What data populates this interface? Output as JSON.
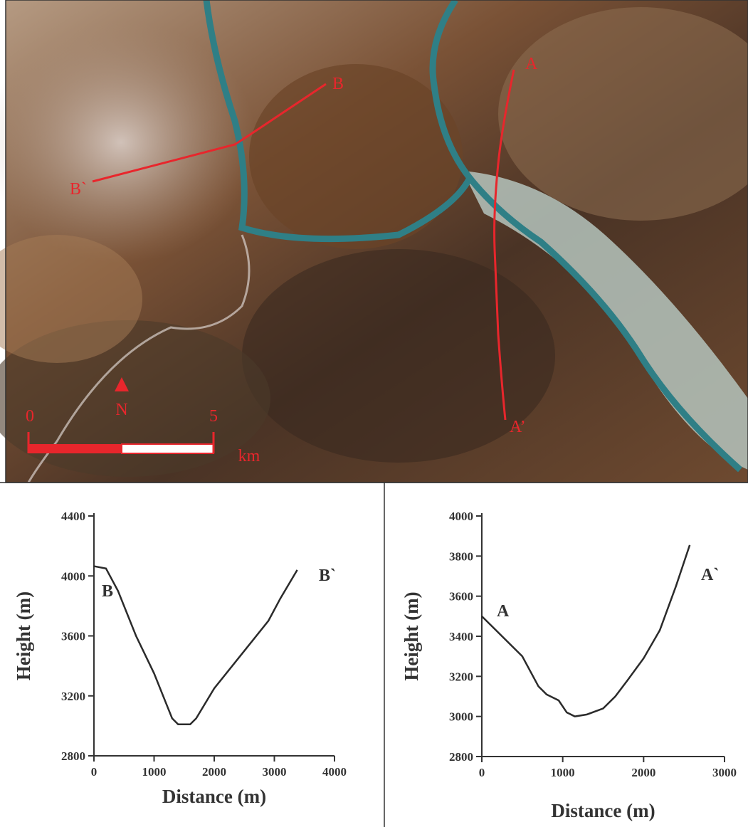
{
  "map": {
    "profile_labels": [
      "A",
      "A’",
      "B",
      "B`"
    ],
    "north": "N",
    "scale_bar": {
      "start": "0",
      "end": "5",
      "unit": "km"
    }
  },
  "chart_data": [
    {
      "type": "line",
      "x_label": "Distance (m)",
      "y_label": "Height (m)",
      "x": [
        0,
        200,
        400,
        700,
        1000,
        1200,
        1300,
        1400,
        1600,
        1700,
        2000,
        2500,
        2900,
        3100,
        3380
      ],
      "values": [
        4065,
        4050,
        3900,
        3600,
        3350,
        3150,
        3050,
        3010,
        3010,
        3050,
        3250,
        3500,
        3700,
        3850,
        4040
      ],
      "color": "#2b2b2b",
      "xlim": [
        0,
        4000
      ],
      "ylim": [
        2800,
        4400
      ],
      "xticks": [
        0,
        1000,
        2000,
        3000,
        4000
      ],
      "yticks": [
        2800,
        3200,
        3600,
        4000,
        4400
      ],
      "annotations": [
        "B",
        "B`"
      ]
    },
    {
      "type": "line",
      "x_label": "Distance (m)",
      "y_label": "Height (m)",
      "x": [
        0,
        100,
        250,
        500,
        700,
        800,
        950,
        1050,
        1150,
        1300,
        1500,
        1650,
        1800,
        2000,
        2200,
        2400,
        2570
      ],
      "values": [
        3500,
        3460,
        3400,
        3300,
        3150,
        3110,
        3080,
        3020,
        3000,
        3010,
        3040,
        3100,
        3180,
        3290,
        3430,
        3650,
        3855
      ],
      "color": "#2b2b2b",
      "xlim": [
        0,
        3000
      ],
      "ylim": [
        2800,
        4000
      ],
      "xticks": [
        0,
        1000,
        2000,
        3000
      ],
      "yticks": [
        2800,
        3000,
        3200,
        3400,
        3600,
        3800,
        4000
      ],
      "annotations": [
        "A",
        "A`"
      ]
    }
  ]
}
